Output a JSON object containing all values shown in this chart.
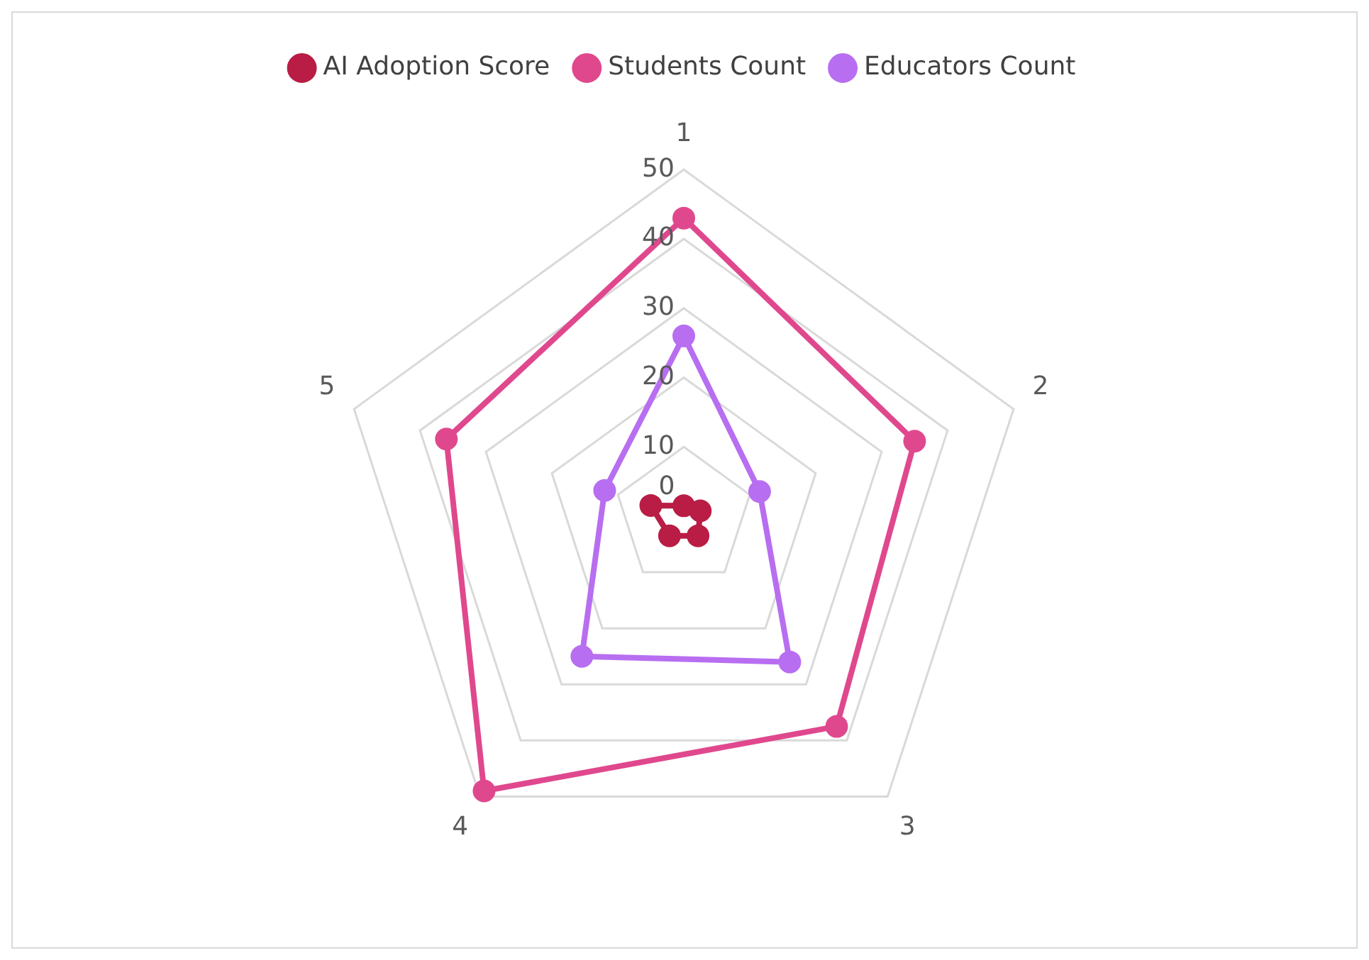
{
  "chart_data": {
    "type": "radar",
    "categories": [
      "1",
      "2",
      "3",
      "4",
      "5"
    ],
    "series": [
      {
        "name": "AI Adoption Score",
        "color": "#b91c44",
        "values": [
          1.5,
          2.5,
          3.5,
          3.5,
          5
        ]
      },
      {
        "name": "Students Count",
        "color": "#e0488e",
        "values": [
          43,
          35,
          37.5,
          49,
          36
        ]
      },
      {
        "name": "Educators Count",
        "color": "#b86ef0",
        "values": [
          26,
          11.5,
          26,
          25,
          12
        ]
      }
    ],
    "ylim": [
      0,
      50
    ],
    "yticks": [
      0,
      10,
      20,
      30,
      40,
      50
    ],
    "legend": "top",
    "marker": "circle",
    "grid": true
  }
}
